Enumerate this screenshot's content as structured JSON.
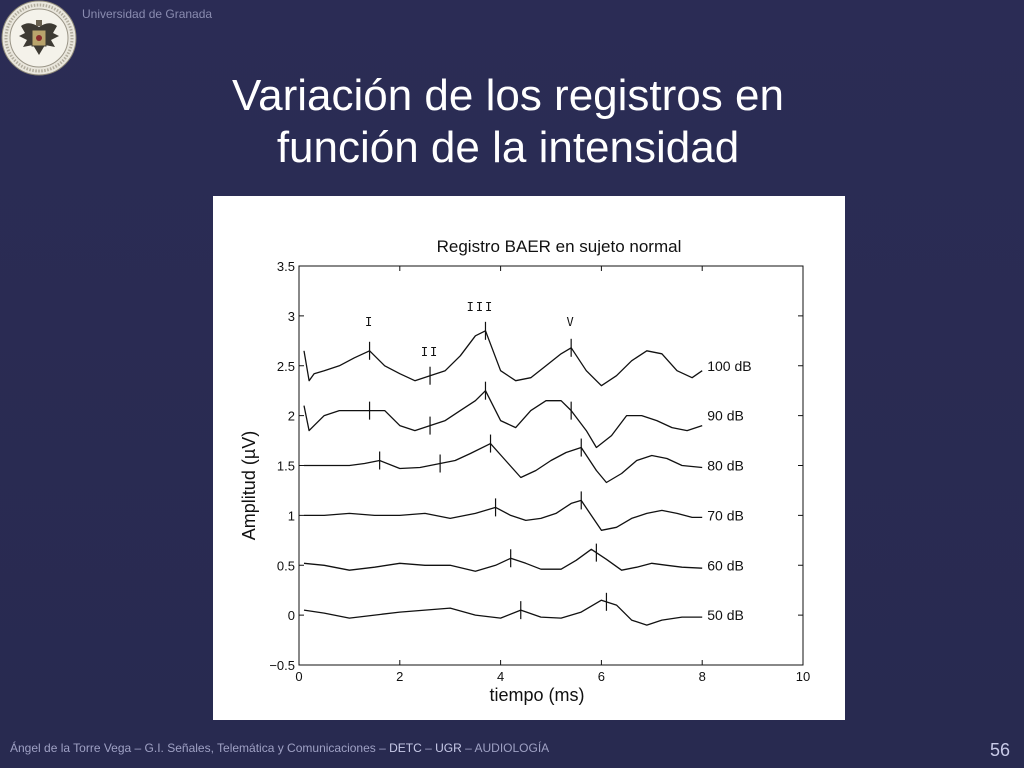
{
  "header": {
    "institution": "Universidad de Granada",
    "title_line1": "Variación de los registros en",
    "title_line2": "función de la intensidad"
  },
  "footer": {
    "author": "Ángel de la Torre Vega",
    "sep1": " – ",
    "group": "G.I. Señales, Telemática y Comunicaciones",
    "sep2": " – ",
    "dept": "DETC",
    "sep3": " – ",
    "univ": "UGR",
    "sep4": " – ",
    "course": "AUDIOLOGÍA",
    "page_number": "56"
  },
  "colors": {
    "background": "#2b2c55",
    "title": "#ffffff",
    "footer_text": "#9fa1c4",
    "trace": "#111111"
  },
  "chart_data": {
    "type": "line",
    "title": "Registro BAER en sujeto normal",
    "xlabel": "tiempo (ms)",
    "ylabel": "Amplitud (µV)",
    "xlim": [
      0,
      10
    ],
    "ylim": [
      -0.5,
      3.5
    ],
    "x_ticks": [
      "0",
      "2",
      "4",
      "6",
      "8",
      "10"
    ],
    "y_ticks": [
      "−0.5",
      "0",
      "0.5",
      "1",
      "1.5",
      "2",
      "2.5",
      "3",
      "3.5"
    ],
    "grid": false,
    "wave_labels": [
      {
        "text": "I",
        "x": 1.4,
        "y": 2.9
      },
      {
        "text": "II",
        "x": 2.6,
        "y": 2.6
      },
      {
        "text": "III",
        "x": 3.6,
        "y": 3.05
      },
      {
        "text": "V",
        "x": 5.4,
        "y": 2.9
      }
    ],
    "series": [
      {
        "name": "100 dB",
        "baseline": 2.5,
        "x": [
          0.1,
          0.2,
          0.3,
          0.5,
          0.8,
          1.1,
          1.4,
          1.7,
          2.0,
          2.3,
          2.6,
          2.9,
          3.2,
          3.5,
          3.7,
          4.0,
          4.3,
          4.6,
          4.9,
          5.2,
          5.4,
          5.7,
          6.0,
          6.3,
          6.6,
          6.9,
          7.2,
          7.5,
          7.8,
          8.0
        ],
        "y": [
          2.65,
          2.35,
          2.42,
          2.45,
          2.5,
          2.58,
          2.65,
          2.5,
          2.42,
          2.35,
          2.4,
          2.45,
          2.6,
          2.8,
          2.85,
          2.45,
          2.35,
          2.38,
          2.5,
          2.62,
          2.68,
          2.45,
          2.3,
          2.4,
          2.55,
          2.65,
          2.62,
          2.45,
          2.38,
          2.45
        ],
        "peaks": [
          1.4,
          2.6,
          3.7,
          5.4
        ]
      },
      {
        "name": "90 dB",
        "baseline": 2.0,
        "x": [
          0.1,
          0.2,
          0.3,
          0.5,
          0.8,
          1.1,
          1.4,
          1.7,
          2.0,
          2.3,
          2.6,
          2.9,
          3.2,
          3.5,
          3.7,
          4.0,
          4.3,
          4.6,
          4.9,
          5.2,
          5.4,
          5.7,
          5.9,
          6.2,
          6.5,
          6.8,
          7.1,
          7.4,
          7.7,
          8.0
        ],
        "y": [
          2.1,
          1.85,
          1.9,
          2.0,
          2.05,
          2.05,
          2.05,
          2.05,
          1.9,
          1.85,
          1.9,
          1.95,
          2.05,
          2.15,
          2.25,
          1.95,
          1.88,
          2.05,
          2.15,
          2.15,
          2.05,
          1.85,
          1.68,
          1.8,
          2.0,
          2.0,
          1.95,
          1.88,
          1.85,
          1.9
        ],
        "peaks": [
          1.4,
          2.6,
          3.7,
          5.4
        ]
      },
      {
        "name": "80 dB",
        "baseline": 1.5,
        "x": [
          0.1,
          0.5,
          1.0,
          1.3,
          1.6,
          2.0,
          2.4,
          2.8,
          3.1,
          3.4,
          3.8,
          4.1,
          4.4,
          4.7,
          5.0,
          5.3,
          5.6,
          5.9,
          6.1,
          6.4,
          6.7,
          7.0,
          7.3,
          7.6,
          8.0
        ],
        "y": [
          1.5,
          1.5,
          1.5,
          1.52,
          1.55,
          1.47,
          1.48,
          1.52,
          1.55,
          1.62,
          1.72,
          1.55,
          1.38,
          1.45,
          1.55,
          1.63,
          1.68,
          1.45,
          1.33,
          1.42,
          1.55,
          1.6,
          1.57,
          1.5,
          1.48
        ],
        "peaks": [
          1.6,
          2.8,
          3.8,
          5.6
        ]
      },
      {
        "name": "70 dB",
        "baseline": 1.0,
        "x": [
          0.1,
          0.5,
          1.0,
          1.5,
          2.0,
          2.5,
          3.0,
          3.5,
          3.9,
          4.2,
          4.5,
          4.8,
          5.1,
          5.4,
          5.6,
          5.8,
          6.0,
          6.3,
          6.6,
          6.9,
          7.2,
          7.5,
          7.8,
          8.0
        ],
        "y": [
          1.0,
          1.0,
          1.02,
          1.0,
          1.0,
          1.02,
          0.97,
          1.02,
          1.08,
          1.0,
          0.95,
          0.97,
          1.02,
          1.12,
          1.15,
          1.0,
          0.85,
          0.88,
          0.97,
          1.02,
          1.05,
          1.02,
          0.98,
          0.98
        ],
        "peaks": [
          3.9,
          5.6
        ]
      },
      {
        "name": "60 dB",
        "baseline": 0.5,
        "x": [
          0.1,
          0.5,
          1.0,
          1.5,
          2.0,
          2.5,
          3.0,
          3.5,
          3.9,
          4.2,
          4.5,
          4.8,
          5.2,
          5.5,
          5.8,
          6.1,
          6.4,
          6.7,
          7.0,
          7.3,
          7.6,
          8.0
        ],
        "y": [
          0.52,
          0.5,
          0.45,
          0.48,
          0.52,
          0.5,
          0.5,
          0.44,
          0.5,
          0.57,
          0.52,
          0.46,
          0.46,
          0.55,
          0.66,
          0.56,
          0.45,
          0.48,
          0.52,
          0.5,
          0.48,
          0.47
        ],
        "peaks": [
          4.2,
          5.9
        ]
      },
      {
        "name": "50 dB",
        "baseline": 0.0,
        "x": [
          0.1,
          0.5,
          1.0,
          1.5,
          2.0,
          2.5,
          3.0,
          3.5,
          4.0,
          4.4,
          4.8,
          5.2,
          5.6,
          6.0,
          6.3,
          6.6,
          6.9,
          7.2,
          7.6,
          8.0
        ],
        "y": [
          0.05,
          0.02,
          -0.03,
          0.0,
          0.03,
          0.05,
          0.07,
          0.0,
          -0.03,
          0.05,
          -0.02,
          -0.03,
          0.03,
          0.15,
          0.1,
          -0.05,
          -0.1,
          -0.05,
          -0.02,
          -0.02
        ],
        "peaks": [
          4.4,
          6.1
        ]
      }
    ]
  }
}
